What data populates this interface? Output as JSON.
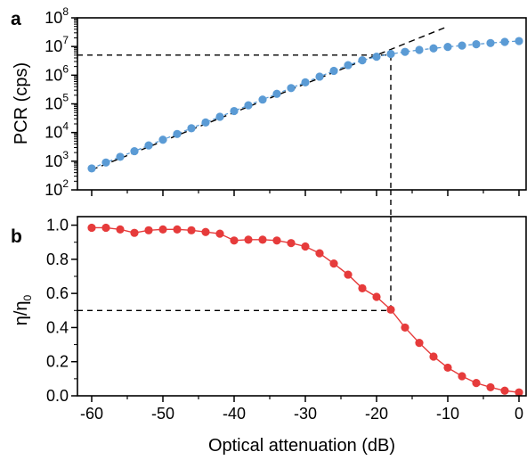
{
  "chart_data": [
    {
      "panel_label": "a",
      "type": "scatter",
      "ylabel": "PCR (cps)",
      "yscale": "log",
      "xlim": [
        -62,
        1
      ],
      "ylim": [
        100,
        100000000
      ],
      "y_tick_exponents": [
        2,
        3,
        4,
        5,
        6,
        7,
        8
      ],
      "y_tick_base": "10",
      "colors": {
        "series": "#5b9bd5",
        "fit": "#000000",
        "guide": "#000000"
      },
      "series": [
        {
          "x": [
            -60,
            -58,
            -56,
            -54,
            -52,
            -50,
            -48,
            -46,
            -44,
            -42,
            -40,
            -38,
            -36,
            -34,
            -32,
            -30,
            -28,
            -26,
            -24,
            -22,
            -20,
            -18,
            -16,
            -14,
            -12,
            -10,
            -8,
            -6,
            -4,
            -2,
            0
          ],
          "y": [
            560,
            900,
            1420,
            2240,
            3550,
            5620,
            8900,
            14100,
            22400,
            35500,
            56200,
            89000,
            141000,
            224000,
            355000,
            562000,
            890000,
            1410000,
            2240000,
            3300000,
            4400000,
            5500000,
            6500000,
            7600000,
            8600000,
            9700000,
            10800000,
            12000000,
            13200000,
            14500000,
            15500000
          ]
        }
      ],
      "fit_line": {
        "style": "dashed",
        "x": [
          -60,
          -10
        ],
        "y": [
          500,
          50000000
        ]
      },
      "guide_line": {
        "style": "dashed",
        "x_at": -18,
        "y_at": 5000000
      }
    },
    {
      "panel_label": "b",
      "type": "line",
      "ylabel_main": "η/η",
      "ylabel_sub": "0",
      "xlabel": "Optical attenuation (dB)",
      "xlim": [
        -62,
        1
      ],
      "ylim": [
        0,
        1.05
      ],
      "x_ticks": [
        -60,
        -50,
        -40,
        -30,
        -20,
        -10,
        0
      ],
      "y_ticks": [
        "0.0",
        "0.2",
        "0.4",
        "0.6",
        "0.8",
        "1.0"
      ],
      "colors": {
        "series": "#e63b3b",
        "guide": "#000000"
      },
      "series": [
        {
          "x": [
            -60,
            -58,
            -56,
            -54,
            -52,
            -50,
            -48,
            -46,
            -44,
            -42,
            -40,
            -38,
            -36,
            -34,
            -32,
            -30,
            -28,
            -26,
            -24,
            -22,
            -20,
            -18,
            -16,
            -14,
            -12,
            -10,
            -8,
            -6,
            -4,
            -2,
            0
          ],
          "y": [
            0.985,
            0.985,
            0.975,
            0.955,
            0.97,
            0.975,
            0.975,
            0.97,
            0.96,
            0.95,
            0.91,
            0.915,
            0.915,
            0.91,
            0.895,
            0.875,
            0.835,
            0.775,
            0.71,
            0.63,
            0.58,
            0.505,
            0.4,
            0.31,
            0.23,
            0.165,
            0.115,
            0.075,
            0.05,
            0.03,
            0.02
          ]
        }
      ],
      "guide_line": {
        "style": "dashed",
        "x_at": -18,
        "y_at": 0.5
      }
    }
  ]
}
